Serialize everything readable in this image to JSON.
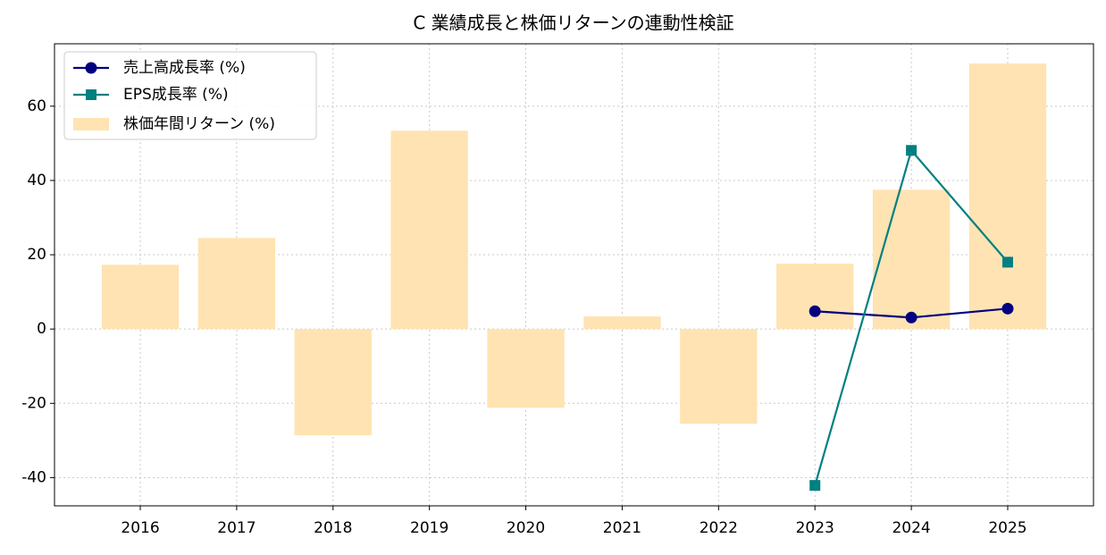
{
  "chart_data": {
    "type": "bar",
    "title": "C 業績成長と株価リターンの連動性検証",
    "categories": [
      "2016",
      "2017",
      "2018",
      "2019",
      "2020",
      "2021",
      "2022",
      "2023",
      "2024",
      "2025"
    ],
    "series": [
      {
        "name": "売上高成長率 (%)",
        "kind": "line",
        "marker": "circle",
        "color": "#000080",
        "values": [
          null,
          null,
          null,
          null,
          null,
          null,
          null,
          4.8,
          3.1,
          5.5
        ]
      },
      {
        "name": "EPS成長率 (%)",
        "kind": "line",
        "marker": "square",
        "color": "#008080",
        "values": [
          null,
          null,
          null,
          null,
          null,
          null,
          null,
          -42.1,
          48.1,
          18.0
        ]
      },
      {
        "name": "株価年間リターン (%)",
        "kind": "bar",
        "color": "#ffe3b2",
        "values": [
          17.3,
          24.5,
          -28.6,
          53.4,
          -21.2,
          3.4,
          -25.5,
          17.6,
          37.5,
          71.5
        ]
      }
    ],
    "ylim": [
      -47.6,
      76.8
    ],
    "yticks": [
      -40,
      -20,
      0,
      20,
      40,
      60
    ],
    "grid": true,
    "legend": "upper-left"
  }
}
